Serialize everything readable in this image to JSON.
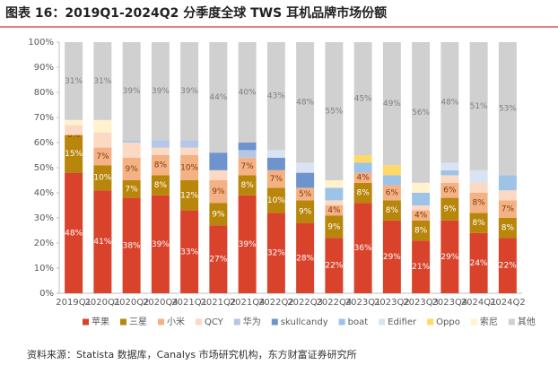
{
  "chart_data": {
    "type": "stacked_bar",
    "title": "图表 16：2019Q1-2024Q2 分季度全球 TWS 耳机品牌市场份额",
    "source": "资料来源：Statista 数据库，Canalys 市场研究机构，东方财富证券研究所",
    "categories": [
      "2019Q1",
      "2020Q1",
      "2020Q2",
      "2020Q4",
      "2021Q1",
      "2021Q2",
      "2021Q4",
      "2022Q2",
      "2022Q3",
      "2022Q4",
      "2023Q1",
      "2023Q2",
      "2023Q3",
      "2023Q4",
      "2024Q1",
      "2024Q2"
    ],
    "ylim": [
      0,
      100
    ],
    "yticks": [
      {
        "value": 0,
        "label": "0%"
      },
      {
        "value": 10,
        "label": "10%"
      },
      {
        "value": 20,
        "label": "20%"
      },
      {
        "value": 30,
        "label": "30%"
      },
      {
        "value": 40,
        "label": "40%"
      },
      {
        "value": 50,
        "label": "50%"
      },
      {
        "value": 60,
        "label": "60%"
      },
      {
        "value": 70,
        "label": "70%"
      },
      {
        "value": 80,
        "label": "80%"
      },
      {
        "value": 90,
        "label": "90%"
      },
      {
        "value": 100,
        "label": "100%"
      }
    ],
    "series": [
      {
        "name": "苹果",
        "color": "#d9432b",
        "values": [
          48,
          41,
          38,
          39,
          33,
          27,
          39,
          32,
          28,
          22,
          36,
          29,
          21,
          29,
          24,
          22
        ],
        "value_labels": [
          "48%",
          "41%",
          "38%",
          "39%",
          "33%",
          "27%",
          "39%",
          "32%",
          "28%",
          "22%",
          "36%",
          "29%",
          "21%",
          "29%",
          "24%",
          "22%"
        ]
      },
      {
        "name": "三星",
        "color": "#b8860b",
        "values": [
          15,
          10,
          7,
          8,
          12,
          9,
          8,
          10,
          9,
          9,
          8,
          8,
          8,
          9,
          8,
          8
        ],
        "value_labels": [
          "15%",
          "10%",
          "7%",
          "8%",
          "12%",
          "9%",
          "8%",
          "10%",
          "9%",
          "9%",
          "8%",
          "8%",
          "8%",
          "9%",
          "8%",
          "8%"
        ]
      },
      {
        "name": "小米",
        "color": "#f4b183",
        "values": [
          0,
          7,
          9,
          8,
          10,
          9,
          7,
          7,
          5,
          4,
          4,
          6,
          4,
          6,
          8,
          7
        ],
        "value_labels": [
          "0%",
          "7%",
          "9%",
          "8%",
          "10%",
          "9%",
          "7%",
          "7%",
          "5%",
          "4%",
          "4%",
          "6%",
          "4%",
          "6%",
          "8%",
          "7%"
        ]
      },
      {
        "name": "QCY",
        "color": "#fbd9c2",
        "values": [
          4,
          6,
          6,
          3,
          3,
          4,
          0,
          0,
          0,
          2,
          0,
          0,
          2,
          3,
          4,
          4
        ]
      },
      {
        "name": "华为",
        "color": "#b4c7e7",
        "values": [
          0,
          0,
          1,
          3,
          3,
          0,
          3,
          0,
          0,
          0,
          0,
          0,
          0,
          0,
          0,
          0
        ]
      },
      {
        "name": "skullcandy",
        "color": "#6f94cd",
        "values": [
          0,
          0,
          0,
          0,
          0,
          7,
          3,
          5,
          6,
          0,
          0,
          0,
          0,
          0,
          0,
          0
        ]
      },
      {
        "name": "boat",
        "color": "#9dc3e6",
        "values": [
          0,
          0,
          0,
          0,
          0,
          0,
          0,
          0,
          0,
          5,
          4,
          4,
          5,
          2,
          0,
          6
        ]
      },
      {
        "name": "Edifier",
        "color": "#dae3f3",
        "values": [
          0,
          0,
          0,
          0,
          0,
          0,
          0,
          3,
          4,
          0,
          0,
          0,
          0,
          3,
          5,
          0
        ]
      },
      {
        "name": "Oppo",
        "color": "#ffd966",
        "values": [
          0,
          0,
          0,
          0,
          0,
          0,
          0,
          0,
          0,
          0,
          3,
          4,
          0,
          0,
          0,
          0
        ]
      },
      {
        "name": "索尼",
        "color": "#fff2cc",
        "values": [
          2,
          5,
          0,
          0,
          0,
          0,
          0,
          0,
          0,
          3,
          0,
          0,
          4,
          0,
          0,
          0
        ]
      },
      {
        "name": "其他",
        "color": "#d0d0d0",
        "values": [
          31,
          31,
          39,
          39,
          39,
          44,
          40,
          43,
          48,
          55,
          45,
          49,
          56,
          48,
          51,
          53
        ],
        "value_labels": [
          "31%",
          "31%",
          "39%",
          "39%",
          "39%",
          "44%",
          "40%",
          "43%",
          "48%",
          "55%",
          "45%",
          "49%",
          "56%",
          "48%",
          "51%",
          "53%"
        ]
      }
    ]
  }
}
